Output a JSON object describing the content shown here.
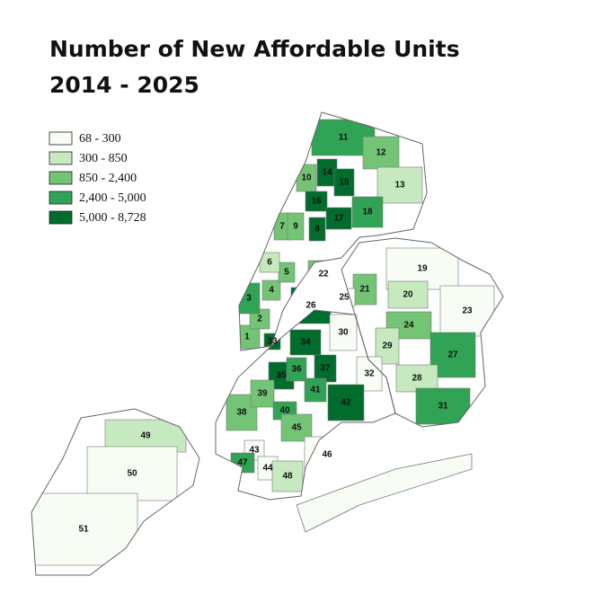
{
  "title": [
    "Number of New Affordable Units",
    "2014 - 2025"
  ],
  "legend": {
    "items": [
      {
        "label": "68 - 300",
        "color": "#f7fcf5"
      },
      {
        "label": "300 - 850",
        "color": "#c7e9c0"
      },
      {
        "label": "850 - 2,400",
        "color": "#74c476"
      },
      {
        "label": "2,400 - 5,000",
        "color": "#31a354"
      },
      {
        "label": "5,000 - 8,728",
        "color": "#006d2c"
      }
    ]
  },
  "districts": [
    {
      "label": "1",
      "bin": 2
    },
    {
      "label": "2",
      "bin": 2
    },
    {
      "label": "3",
      "bin": 3
    },
    {
      "label": "4",
      "bin": 2
    },
    {
      "label": "5",
      "bin": 2
    },
    {
      "label": "6",
      "bin": 1
    },
    {
      "label": "7",
      "bin": 2
    },
    {
      "label": "8",
      "bin": 4
    },
    {
      "label": "9",
      "bin": 2
    },
    {
      "label": "10",
      "bin": 2
    },
    {
      "label": "11",
      "bin": 3
    },
    {
      "label": "12",
      "bin": 2
    },
    {
      "label": "13",
      "bin": 1
    },
    {
      "label": "14",
      "bin": 4
    },
    {
      "label": "15",
      "bin": 4
    },
    {
      "label": "16",
      "bin": 4
    },
    {
      "label": "17",
      "bin": 4
    },
    {
      "label": "18",
      "bin": 3
    },
    {
      "label": "19",
      "bin": 0
    },
    {
      "label": "20",
      "bin": 1
    },
    {
      "label": "21",
      "bin": 2
    },
    {
      "label": "22",
      "bin": 2
    },
    {
      "label": "23",
      "bin": 0
    },
    {
      "label": "24",
      "bin": 2
    },
    {
      "label": "25",
      "bin": 0
    },
    {
      "label": "26",
      "bin": 4
    },
    {
      "label": "27",
      "bin": 3
    },
    {
      "label": "28",
      "bin": 1
    },
    {
      "label": "29",
      "bin": 1
    },
    {
      "label": "30",
      "bin": 0
    },
    {
      "label": "31",
      "bin": 3
    },
    {
      "label": "32",
      "bin": 0
    },
    {
      "label": "33",
      "bin": 4
    },
    {
      "label": "34",
      "bin": 4
    },
    {
      "label": "35",
      "bin": 4
    },
    {
      "label": "36",
      "bin": 3
    },
    {
      "label": "37",
      "bin": 4
    },
    {
      "label": "38",
      "bin": 2
    },
    {
      "label": "39",
      "bin": 2
    },
    {
      "label": "40",
      "bin": 3
    },
    {
      "label": "41",
      "bin": 3
    },
    {
      "label": "42",
      "bin": 4
    },
    {
      "label": "43",
      "bin": 0
    },
    {
      "label": "44",
      "bin": 0
    },
    {
      "label": "45",
      "bin": 2
    },
    {
      "label": "46",
      "bin": 0
    },
    {
      "label": "47",
      "bin": 3
    },
    {
      "label": "48",
      "bin": 1
    },
    {
      "label": "49",
      "bin": 1
    },
    {
      "label": "50",
      "bin": 0
    },
    {
      "label": "51",
      "bin": 0
    }
  ]
}
